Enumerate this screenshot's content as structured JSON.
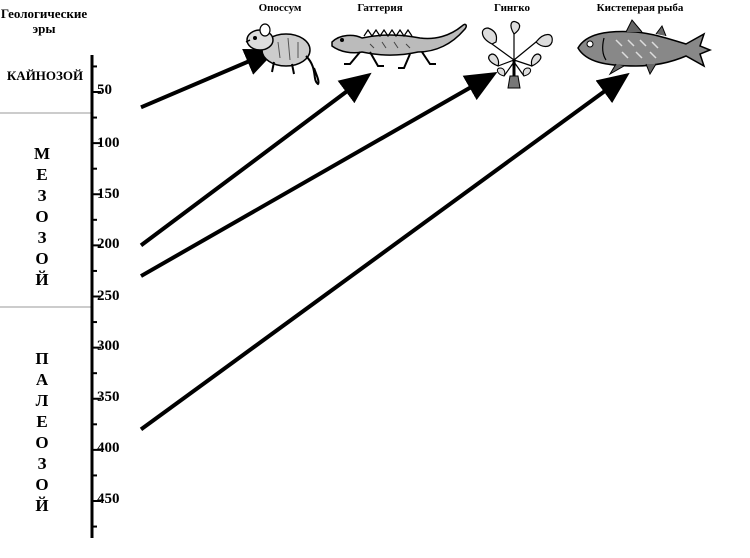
{
  "header": {
    "line1": "Геологические",
    "line2": "эры"
  },
  "eras": [
    {
      "name": "КАЙНОЗОЙ",
      "letters": [
        "КАЙНОЗОЙ"
      ]
    },
    {
      "name": "МЕЗОЗОЙ",
      "letters": [
        "М",
        "Е",
        "З",
        "О",
        "З",
        "О",
        "Й"
      ]
    },
    {
      "name": "ПАЛЕОЗОЙ",
      "letters": [
        "П",
        "А",
        "Л",
        "Е",
        "О",
        "З",
        "О",
        "Й"
      ]
    }
  ],
  "axis": {
    "unit_label": "",
    "ticks": [
      "50",
      "100",
      "150",
      "200",
      "250",
      "300",
      "350",
      "400",
      "450"
    ]
  },
  "organisms": [
    {
      "name": "Опоссум",
      "icon": "opossum-icon"
    },
    {
      "name": "Гаттерия",
      "icon": "tuatara-icon"
    },
    {
      "name": "Гингко",
      "icon": "ginkgo-icon"
    },
    {
      "name": "Кистеперая рыба",
      "icon": "coelacanth-icon"
    }
  ],
  "arrows": [
    {
      "from_age": 65,
      "to": "Опоссум"
    },
    {
      "from_age": 200,
      "to": "Гаттерия"
    },
    {
      "from_age": 230,
      "to": "Гингко"
    },
    {
      "from_age": 380,
      "to": "Кистеперая рыба"
    }
  ]
}
